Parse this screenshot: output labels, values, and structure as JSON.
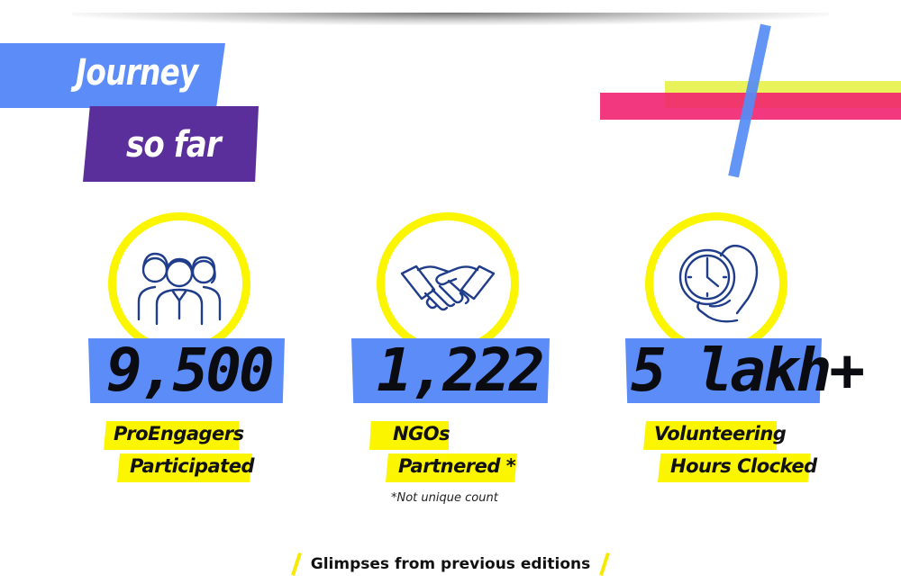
{
  "title": {
    "line1": "Journey",
    "line2": "so far"
  },
  "colors": {
    "blue": "#5b8cf7",
    "purple": "#5a2f9b",
    "yellow": "#fbf500",
    "pink": "#f01e6e",
    "ink": "#0b0b12"
  },
  "stats": [
    {
      "icon": "people-group-icon",
      "value": "9,500",
      "label_line1": "ProEngagers",
      "label_line2": "Participated"
    },
    {
      "icon": "handshake-icon",
      "value": "1,222",
      "label_line1": "NGOs",
      "label_line2": "Partnered *"
    },
    {
      "icon": "clock-hand-icon",
      "value": "5 lakh+",
      "label_line1": "Volunteering",
      "label_line2": "Hours Clocked"
    }
  ],
  "footnote": "*Not unique count",
  "glimpses_link": "Glimpses from previous editions"
}
